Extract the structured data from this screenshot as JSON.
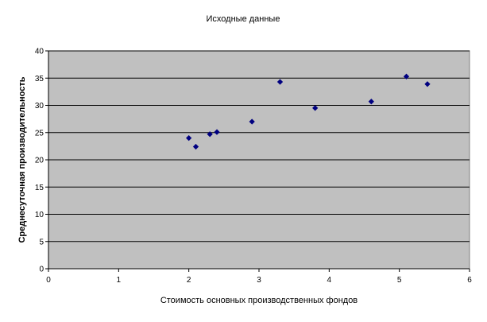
{
  "chart_data": {
    "type": "scatter",
    "title": "Исходные данные",
    "xlabel": "Стоимость основных производственных фондов",
    "ylabel": "Среднесуточная производительность",
    "xlim": [
      0,
      6
    ],
    "ylim": [
      0,
      40
    ],
    "x_ticks": [
      "0",
      "1",
      "2",
      "3",
      "4",
      "5",
      "6"
    ],
    "y_ticks": [
      "0",
      "5",
      "10",
      "15",
      "20",
      "25",
      "30",
      "35",
      "40"
    ],
    "grid": "horizontal",
    "legend": "none",
    "plot_background": "#c0c0c0",
    "marker_color": "#000080",
    "points": [
      {
        "x": 2.0,
        "y": 24.0
      },
      {
        "x": 2.1,
        "y": 22.4
      },
      {
        "x": 2.3,
        "y": 24.7
      },
      {
        "x": 2.4,
        "y": 25.1
      },
      {
        "x": 2.9,
        "y": 27.0
      },
      {
        "x": 3.3,
        "y": 34.3
      },
      {
        "x": 3.8,
        "y": 29.5
      },
      {
        "x": 4.6,
        "y": 30.7
      },
      {
        "x": 5.1,
        "y": 35.3
      },
      {
        "x": 5.4,
        "y": 33.9
      }
    ]
  }
}
